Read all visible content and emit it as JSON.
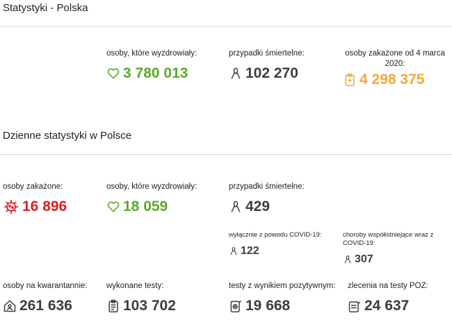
{
  "colors": {
    "green": "#5ea72c",
    "red": "#d81f26",
    "orange": "#f4a938",
    "dark": "#3d3d3d"
  },
  "section_poland": {
    "title": "Statystyki - Polska",
    "recovered": {
      "label": "osoby, które wyzdrowiały:",
      "value": "3 780 013",
      "icon": "heart-icon"
    },
    "deaths": {
      "label": "przypadki śmiertelne:",
      "value": "102 270",
      "icon": "ribbon-icon"
    },
    "infected": {
      "label": "osoby zakażone od 4 marca 2020:",
      "value": "4 298 375",
      "icon": "clipboard-medical-icon"
    }
  },
  "section_daily": {
    "title": "Dzienne statystyki w Polsce",
    "infected": {
      "label": "osoby zakażone:",
      "value": "16 896",
      "icon": "virus-icon"
    },
    "recovered": {
      "label": "osoby, które wyzdrowiały:",
      "value": "18 059",
      "icon": "heart-icon"
    },
    "deaths": {
      "label": "przypadki śmiertelne:",
      "value": "429",
      "icon": "ribbon-icon"
    },
    "deaths_covid_only": {
      "label": "wyłącznie z powodu COVID-19:",
      "value": "122",
      "icon": "ribbon-icon"
    },
    "deaths_comorbid": {
      "label": "choroby współistniejące wraz z COVID-19:",
      "value": "307",
      "icon": "ribbon-icon"
    },
    "quarantine": {
      "label": "osoby na kwarantannie:",
      "value": "261 636",
      "icon": "house-person-icon"
    },
    "tests_done": {
      "label": "wykonane testy:",
      "value": "103 702",
      "icon": "clipboard-list-icon"
    },
    "tests_positive": {
      "label": "testy z wynikiem pozytywnym:",
      "value": "19 668",
      "icon": "test-positive-icon"
    },
    "poz_orders": {
      "label": "zlecenia na testy POZ:",
      "value": "24 637",
      "icon": "poz-order-icon"
    }
  }
}
